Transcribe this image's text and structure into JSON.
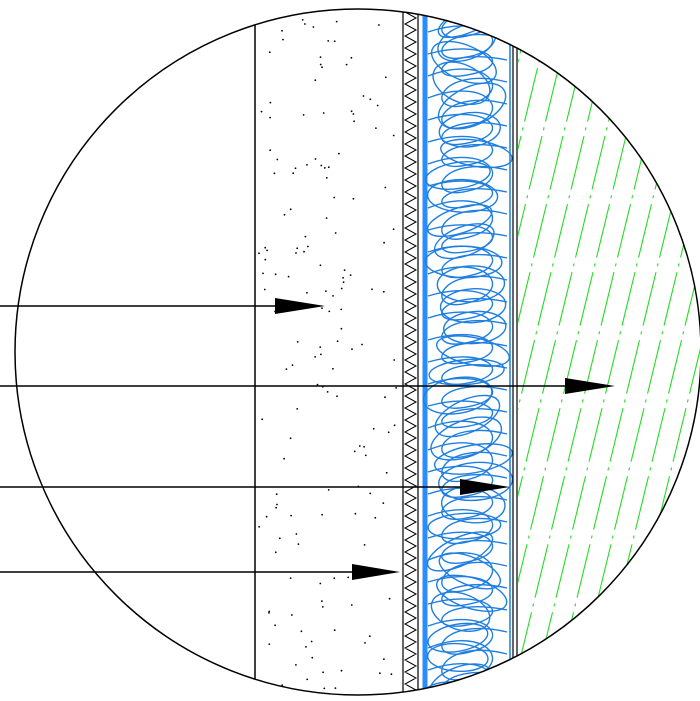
{
  "diagram": {
    "type": "wall-section-detail",
    "description_free": true,
    "layers": [
      {
        "id": "plaster",
        "hatch": "dots",
        "color": "#000000"
      },
      {
        "id": "membrane",
        "hatch": "zigzag",
        "color": "#000000"
      },
      {
        "id": "insulation",
        "hatch": "loops",
        "color": "#1f7fe0"
      },
      {
        "id": "cladding",
        "hatch": "dash-dot-diagonal",
        "color": "#22dd22"
      }
    ],
    "leader_arrows": 4,
    "colors": {
      "outline": "#000000",
      "insulation": "#1f7fe0",
      "insulation_edge": "#2a8cff",
      "cladding": "#22dd22",
      "background": "#ffffff"
    }
  }
}
